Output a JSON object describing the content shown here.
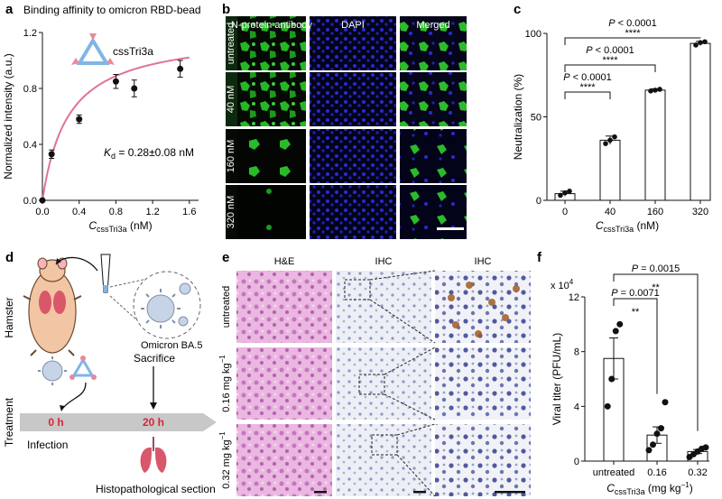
{
  "panels": {
    "a": {
      "label": "a"
    },
    "b": {
      "label": "b"
    },
    "c": {
      "label": "c"
    },
    "d": {
      "label": "d"
    },
    "e": {
      "label": "e"
    },
    "f": {
      "label": "f"
    }
  },
  "chart_data": [
    {
      "type": "scatter",
      "panel": "a",
      "title": "Binding affinity to omicron RBD-bead",
      "ylabel": "Normalized intensity (a.u.)",
      "xlabel_main": "C",
      "xlabel_sub": "cssTri3a",
      "xlabel_unit": " (nM)",
      "x_ticks": [
        "0.0",
        "0.4",
        "0.8",
        "1.2",
        "1.6"
      ],
      "y_ticks": [
        "0.0",
        "0.4",
        "0.8",
        "1.2"
      ],
      "xlim": [
        0,
        1.7
      ],
      "ylim": [
        0,
        1.2
      ],
      "molecule_label": "cssTri3a",
      "kd_main": "K",
      "kd_sub": "d",
      "kd_value": " = 0.28±0.08 nM",
      "points": [
        {
          "x": 0.0,
          "y": 0.0,
          "err": 0.0
        },
        {
          "x": 0.1,
          "y": 0.33,
          "err": 0.03
        },
        {
          "x": 0.4,
          "y": 0.58,
          "err": 0.03
        },
        {
          "x": 0.8,
          "y": 0.85,
          "err": 0.05
        },
        {
          "x": 1.0,
          "y": 0.8,
          "err": 0.06
        },
        {
          "x": 1.5,
          "y": 0.94,
          "err": 0.06
        }
      ],
      "fit": {
        "bmax": 1.2,
        "kd": 0.28,
        "color": "#e07394"
      }
    },
    {
      "type": "bar",
      "panel": "c",
      "ylabel": "Neutralization (%)",
      "xlabel_main": "C",
      "xlabel_sub": "cssTri3a",
      "xlabel_unit": " (nM)",
      "categories": [
        "0",
        "40",
        "160",
        "320"
      ],
      "values": [
        4,
        36,
        66,
        94
      ],
      "errors": [
        1.5,
        2.5,
        0.8,
        1.2
      ],
      "points": [
        [
          3,
          4.5,
          5.5
        ],
        [
          34,
          36,
          38
        ],
        [
          65.5,
          66,
          66.5
        ],
        [
          93,
          94.5,
          95
        ]
      ],
      "y_ticks": [
        "0",
        "50",
        "100"
      ],
      "ylim": [
        0,
        100
      ],
      "sig": [
        {
          "from": 0,
          "to": 3,
          "p": "P < 0.0001",
          "stars": "****"
        },
        {
          "from": 0,
          "to": 2,
          "p": "P < 0.0001",
          "stars": "****"
        },
        {
          "from": 0,
          "to": 1,
          "p": "P < 0.0001",
          "stars": "****"
        }
      ]
    },
    {
      "type": "bar",
      "panel": "f",
      "ylabel": "Viral titer (PFU/mL)",
      "multiplier_main": "x 10",
      "multiplier_sup": "4",
      "xlabel_main": "C",
      "xlabel_sub": "cssTri3a",
      "xlabel_unit": " (mg kg",
      "xlabel_sup": "−1",
      "xlabel_end": ")",
      "categories": [
        "untreated",
        "0.16",
        "0.32"
      ],
      "values": [
        7.5,
        1.9,
        0.7
      ],
      "errors": [
        1.5,
        0.6,
        0.15
      ],
      "points": [
        [
          4,
          6,
          9.5,
          10
        ],
        [
          0.8,
          1.2,
          2,
          2.4,
          4.3
        ],
        [
          0.3,
          0.5,
          0.7,
          0.9,
          1.0
        ]
      ],
      "y_ticks": [
        "0",
        "4",
        "8",
        "12"
      ],
      "ylim": [
        0,
        12
      ],
      "sig": [
        {
          "from": 0,
          "to": 2,
          "p": "P = 0.0015",
          "stars": "**"
        },
        {
          "from": 0,
          "to": 1,
          "p": "P = 0.0071",
          "stars": "**"
        }
      ]
    }
  ],
  "panel_b": {
    "columns": [
      "N-protein antibody",
      "DAPI",
      "Merged"
    ],
    "rows": [
      "untreated",
      "40 nM",
      "160 nM",
      "320 nM"
    ],
    "colors": {
      "green": "#1aa61a",
      "blue": "#1a1ab4"
    }
  },
  "panel_d": {
    "hamster_label": "Hamster",
    "virus_label": "Omicron BA.5",
    "treatment_label": "Treatment",
    "sacrifice_label": "Sacrifice",
    "time_start": "0 h",
    "time_end": "20 h",
    "infection_label": "Infection",
    "section_label": "Histopathological section"
  },
  "panel_e": {
    "columns": [
      "H&E",
      "IHC",
      "IHC"
    ],
    "rows": [
      {
        "main": "untreated",
        "sup": ""
      },
      {
        "main": "0.16 mg kg",
        "sup": "−1"
      },
      {
        "main": "0.32 mg kg",
        "sup": "−1"
      }
    ]
  }
}
